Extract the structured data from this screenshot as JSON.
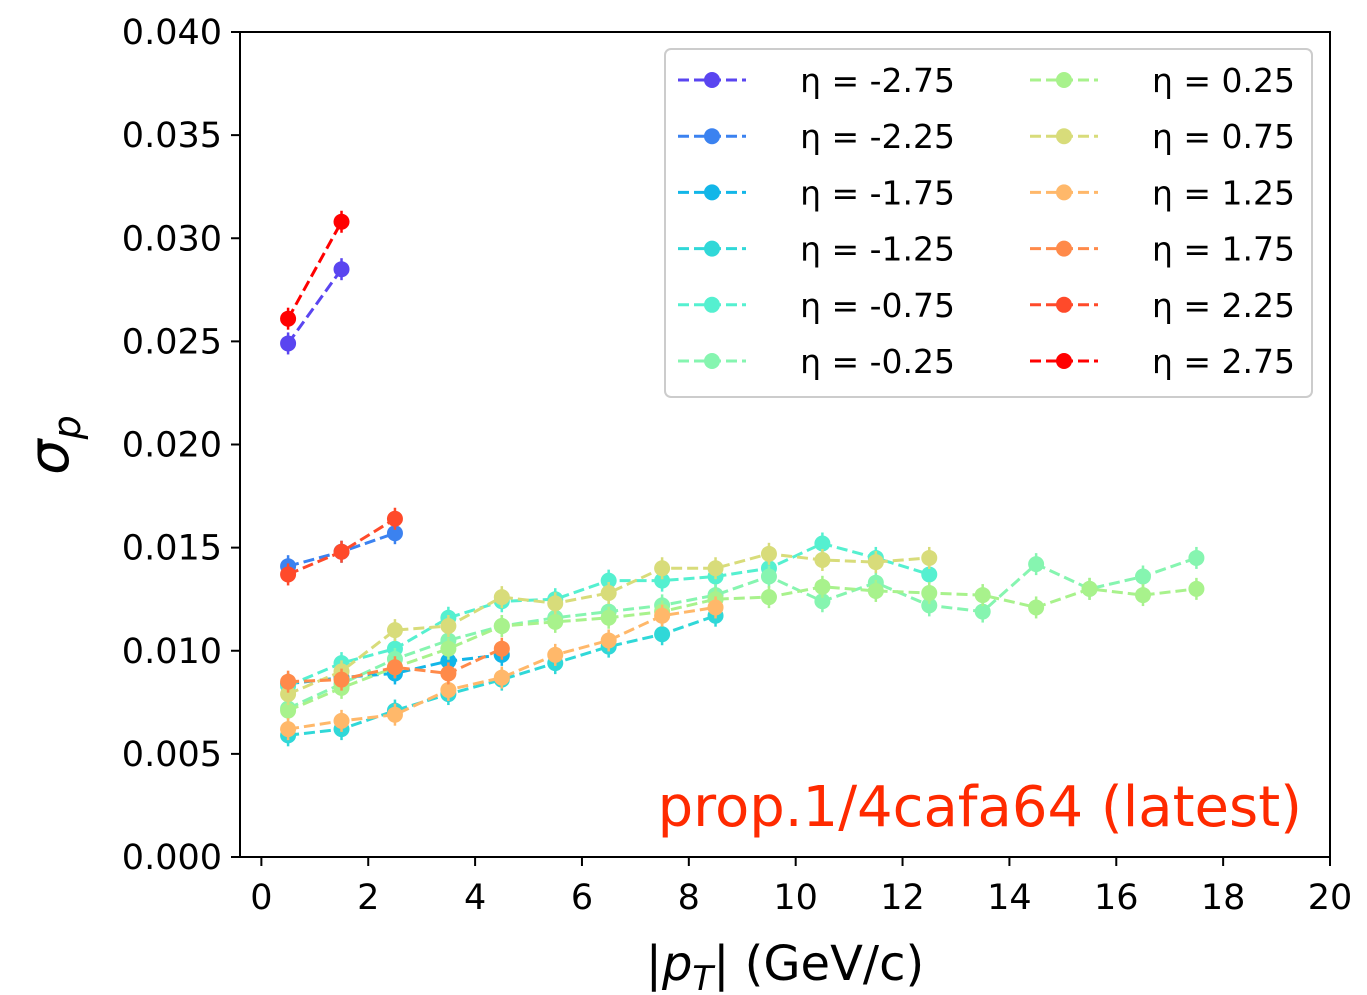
{
  "chart_data": {
    "type": "line",
    "xlabel_parts": {
      "pre": "|",
      "var": "p",
      "sub": "T",
      "post": "| (GeV/c)"
    },
    "ylabel_parts": {
      "var": "σ",
      "sub": "p"
    },
    "xlim": [
      -0.4,
      20
    ],
    "ylim": [
      0.0,
      0.04
    ],
    "xticks": [
      "0",
      "2",
      "4",
      "6",
      "8",
      "10",
      "12",
      "14",
      "16",
      "18",
      "20"
    ],
    "yticks": [
      "0.000",
      "0.005",
      "0.010",
      "0.015",
      "0.020",
      "0.025",
      "0.030",
      "0.035",
      "0.040"
    ],
    "grid": false,
    "legend_placement": "top-right",
    "annotation": "prop.1/4cafa64 (latest)",
    "series": [
      {
        "name": "η = -2.75",
        "color": "#5a45f0",
        "x": [
          0.5,
          1.5
        ],
        "y": [
          0.0249,
          0.0285
        ]
      },
      {
        "name": "η = -2.25",
        "color": "#3b82f0",
        "x": [
          0.5,
          1.5,
          2.5
        ],
        "y": [
          0.0141,
          0.0148,
          0.0157
        ]
      },
      {
        "name": "η = -1.75",
        "color": "#12b6e8",
        "x": [
          0.5,
          1.5,
          2.5,
          3.5,
          4.5
        ],
        "y": [
          0.0084,
          0.0087,
          0.0089,
          0.0095,
          0.0098
        ]
      },
      {
        "name": "η = -1.25",
        "color": "#30d8d8",
        "x": [
          0.5,
          1.5,
          2.5,
          3.5,
          4.5,
          5.5,
          6.5,
          7.5,
          8.5
        ],
        "y": [
          0.0059,
          0.0062,
          0.0071,
          0.0079,
          0.0086,
          0.0094,
          0.0102,
          0.0108,
          0.0117
        ]
      },
      {
        "name": "η = -0.75",
        "color": "#55f0d0",
        "x": [
          0.5,
          1.5,
          2.5,
          3.5,
          4.5,
          5.5,
          6.5,
          7.5,
          8.5,
          9.5,
          10.5,
          11.5,
          12.5
        ],
        "y": [
          0.0083,
          0.0094,
          0.0101,
          0.0116,
          0.0124,
          0.0125,
          0.0134,
          0.0134,
          0.0136,
          0.014,
          0.0152,
          0.0145,
          0.0137
        ]
      },
      {
        "name": "η = -0.25",
        "color": "#86f5b0",
        "x": [
          0.5,
          1.5,
          2.5,
          3.5,
          4.5,
          5.5,
          6.5,
          7.5,
          8.5,
          9.5,
          10.5,
          11.5,
          12.5,
          13.5,
          14.5,
          15.5,
          16.5,
          17.5
        ],
        "y": [
          0.0072,
          0.0084,
          0.0096,
          0.0105,
          0.0112,
          0.0116,
          0.0119,
          0.0122,
          0.0127,
          0.0136,
          0.0124,
          0.0133,
          0.0122,
          0.0119,
          0.0142,
          0.013,
          0.0136,
          0.0145
        ]
      },
      {
        "name": "η = 0.25",
        "color": "#a8f28c",
        "x": [
          0.5,
          1.5,
          2.5,
          3.5,
          4.5,
          5.5,
          6.5,
          7.5,
          8.5,
          9.5,
          10.5,
          11.5,
          12.5,
          13.5,
          14.5,
          15.5,
          16.5,
          17.5
        ],
        "y": [
          0.0071,
          0.0082,
          0.0092,
          0.0101,
          0.0112,
          0.0114,
          0.0116,
          0.0119,
          0.0125,
          0.0126,
          0.0131,
          0.0129,
          0.0128,
          0.0127,
          0.0121,
          0.013,
          0.0127,
          0.013
        ]
      },
      {
        "name": "η = 0.75",
        "color": "#d8dc7a",
        "x": [
          0.5,
          1.5,
          2.5,
          3.5,
          4.5,
          5.5,
          6.5,
          7.5,
          8.5,
          9.5,
          10.5,
          11.5,
          12.5
        ],
        "y": [
          0.0079,
          0.009,
          0.011,
          0.0112,
          0.0126,
          0.0123,
          0.0128,
          0.014,
          0.014,
          0.0147,
          0.0144,
          0.0143,
          0.0145
        ]
      },
      {
        "name": "η = 1.25",
        "color": "#ffb86a",
        "x": [
          0.5,
          1.5,
          2.5,
          3.5,
          4.5,
          5.5,
          6.5,
          7.5,
          8.5
        ],
        "y": [
          0.0062,
          0.0066,
          0.0069,
          0.0081,
          0.0087,
          0.0098,
          0.0105,
          0.0117,
          0.0121
        ]
      },
      {
        "name": "η = 1.75",
        "color": "#ff8a4a",
        "x": [
          0.5,
          1.5,
          2.5,
          3.5,
          4.5
        ],
        "y": [
          0.0085,
          0.0086,
          0.0092,
          0.0089,
          0.0101
        ]
      },
      {
        "name": "η = 2.25",
        "color": "#ff4a2a",
        "x": [
          0.5,
          1.5,
          2.5
        ],
        "y": [
          0.0137,
          0.0148,
          0.0164
        ]
      },
      {
        "name": "η = 2.75",
        "color": "#ff0000",
        "x": [
          0.5,
          1.5
        ],
        "y": [
          0.0261,
          0.0308
        ]
      }
    ]
  }
}
